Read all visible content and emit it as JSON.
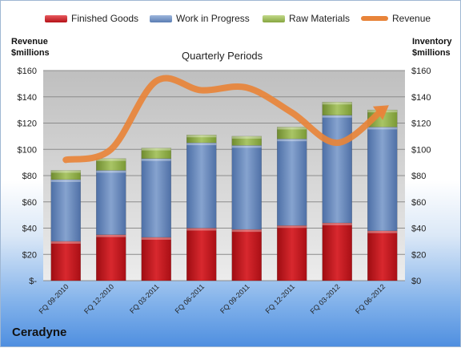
{
  "chart_data": {
    "type": "bar",
    "stacked": true,
    "title": "Quarterly Periods",
    "company": "Ceradyne",
    "left_axis_label": "Revenue\n$millions",
    "right_axis_label": "Inventory\n$millions",
    "ylim": [
      0,
      160
    ],
    "left_tick_labels": [
      "$-",
      "$20",
      "$40",
      "$60",
      "$80",
      "$100",
      "$120",
      "$140",
      "$160"
    ],
    "right_tick_labels": [
      "$0",
      "$20",
      "$40",
      "$60",
      "$80",
      "$100",
      "$120",
      "$140",
      "$160"
    ],
    "tick_values": [
      0,
      20,
      40,
      60,
      80,
      100,
      120,
      140,
      160
    ],
    "categories": [
      "FQ 09-2010",
      "FQ 12-2010",
      "FQ 03-2011",
      "FQ 06-2011",
      "FQ 09-2011",
      "FQ 12-2011",
      "FQ 03-2012",
      "FQ 06-2012"
    ],
    "series": [
      {
        "name": "Finished Goods",
        "values": [
          30,
          35,
          33,
          40,
          39,
          42,
          44,
          38
        ],
        "color": "#c0161c"
      },
      {
        "name": "Work in Progress",
        "values": [
          47,
          49,
          60,
          65,
          64,
          66,
          82,
          79
        ],
        "color": "#5b7fb5"
      },
      {
        "name": "Raw Materials",
        "values": [
          7,
          9,
          8,
          6,
          7,
          9,
          10,
          13
        ],
        "color": "#8aab45"
      },
      {
        "name": "Revenue",
        "type": "line",
        "values": [
          92,
          100,
          152,
          145,
          147,
          128,
          105,
          130
        ],
        "color": "#e8843a"
      }
    ],
    "legend_position": "top",
    "grid": true
  }
}
